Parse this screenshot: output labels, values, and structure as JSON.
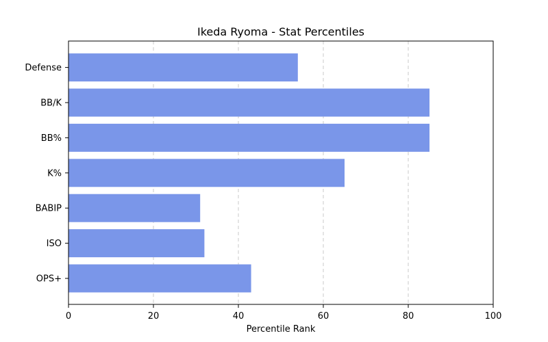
{
  "chart_data": {
    "type": "bar",
    "orientation": "horizontal",
    "title": "Ikeda Ryoma - Stat Percentiles",
    "xlabel": "Percentile Rank",
    "ylabel": "",
    "categories": [
      "OPS+",
      "ISO",
      "BABIP",
      "K%",
      "BB%",
      "BB/K",
      "Defense"
    ],
    "values": [
      43,
      32,
      31,
      65,
      85,
      85,
      54
    ],
    "xlim": [
      0,
      100
    ],
    "xticks": [
      0,
      20,
      40,
      60,
      80,
      100
    ],
    "grid": "x",
    "bar_color": "#7a96e9"
  }
}
